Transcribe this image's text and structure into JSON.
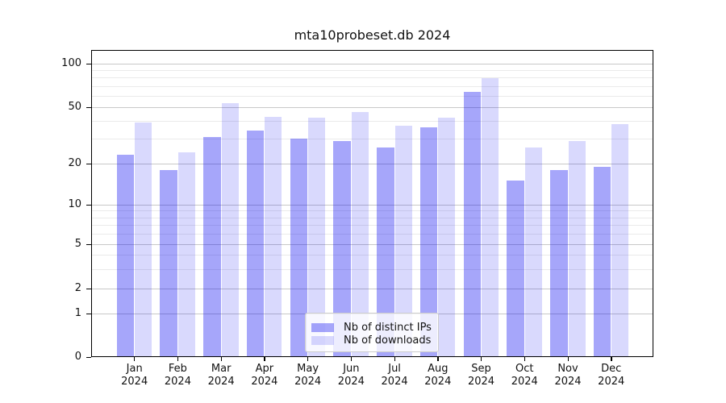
{
  "title": "mta10probeset.db 2024",
  "chart_data": {
    "type": "bar",
    "title": "mta10probeset.db 2024",
    "categories": [
      "Jan 2024",
      "Feb 2024",
      "Mar 2024",
      "Apr 2024",
      "May 2024",
      "Jun 2024",
      "Jul 2024",
      "Aug 2024",
      "Sep 2024",
      "Oct 2024",
      "Nov 2024",
      "Dec 2024"
    ],
    "series": [
      {
        "name": "Nb of distinct IPs",
        "color": "#a5a5f8",
        "fill": "rgba(0,0,240,0.35)",
        "values": [
          23,
          18,
          31,
          34,
          30,
          29,
          26,
          36,
          64,
          15,
          18,
          19
        ]
      },
      {
        "name": "Nb of downloads",
        "color": "#dadafa",
        "fill": "rgba(0,0,240,0.15)",
        "values": [
          39,
          24,
          53,
          43,
          42,
          46,
          37,
          42,
          79,
          26,
          29,
          38
        ]
      }
    ],
    "xlabel": "",
    "ylabel": "",
    "yscale": "symlog",
    "ylim": [
      0,
      125
    ],
    "y_major_ticks": [
      0,
      1,
      2,
      5,
      10,
      20,
      50,
      100
    ],
    "y_minor_ticks": [
      3,
      4,
      6,
      7,
      8,
      9,
      30,
      40,
      60,
      70,
      80,
      90
    ],
    "grid": true,
    "legend_position": "lower center"
  },
  "colors": {
    "grid_major": "#c8c8c8",
    "grid_minor": "#eaeaea",
    "axis": "#000000",
    "text": "#111111",
    "legend_border": "#cccccc"
  }
}
